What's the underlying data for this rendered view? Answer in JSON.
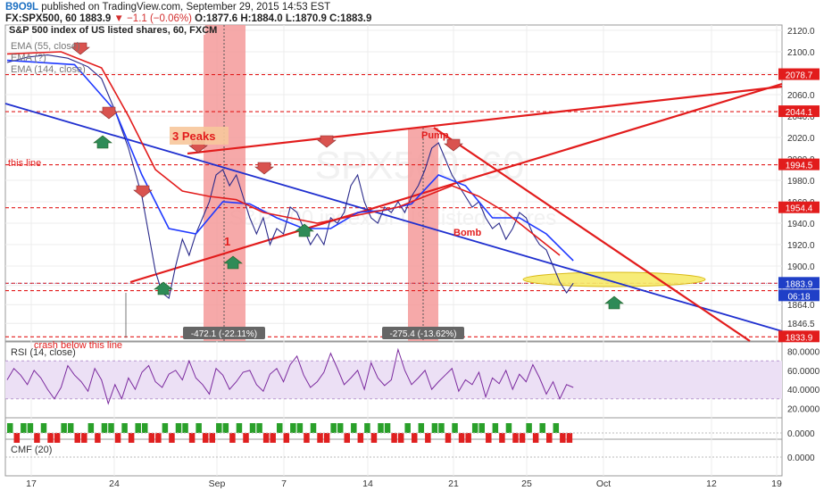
{
  "header": {
    "author": "B9O9L",
    "published": "published on TradingView.com, September 29, 2015 14:53 EST",
    "symbol": "FX:SPX500, 60",
    "last": "1883.9",
    "change": "▼ −1.1 (−0.06%)",
    "ohlc": "O:1877.6 H:1884.0 L:1870.9 C:1883.9"
  },
  "colors": {
    "price": "#2a2a8a",
    "ema55": "#1f39ff",
    "ema144": "#e21c1c",
    "trend_red": "#e21c1c",
    "trend_blue": "#1f2fcf",
    "rsi": "#7b2a9e",
    "rsi_band": "#ece0f5",
    "up_arrow": "#2e8b57",
    "down_arrow": "#d9534f",
    "bar_green": "#2aa02a",
    "bar_red": "#e02020",
    "highlight_ellipse": "#f7ea6a"
  },
  "chart_data": [
    {
      "type": "line",
      "title": "S&P 500 index of US listed shares, 60, FXCM",
      "watermark": "SPX500, 60",
      "watermark_sub": "S&P 500 index of US listed shares",
      "legend": [
        "EMA (55, close)",
        "EMA (?)",
        "EMA (144, close)"
      ],
      "ylim": [
        1830,
        2125
      ],
      "y_ticks": [
        1846.5,
        1864.0,
        1882.0,
        1900.0,
        1920.0,
        1940.0,
        1960.0,
        1980.0,
        2000.0,
        2020.0,
        2040.0,
        2060.0,
        2080.0,
        2100.0,
        2120.0
      ],
      "y_tick_labels": [
        "1846.5",
        "1864.0",
        "1882.0",
        "1900.0",
        "1920.0",
        "1940.0",
        "1960.0",
        "1980.0",
        "2000.0",
        "2020.0",
        "2040.0",
        "2060.0",
        "2080.0",
        "2100.0",
        "2120.0"
      ],
      "x_ticks": [
        "17",
        "24",
        "Sep",
        "7",
        "14",
        "21",
        "25",
        "Oct",
        "12",
        "19"
      ],
      "price_labels": [
        {
          "value": 2078.7,
          "label": "2078.7"
        },
        {
          "value": 2044.1,
          "label": "2044.1"
        },
        {
          "value": 1994.5,
          "label": "1994.5"
        },
        {
          "value": 1954.4,
          "label": "1954.4"
        },
        {
          "value": 1883.9,
          "label": "1883.9"
        },
        {
          "value": 1833.9,
          "label": "1833.9"
        }
      ],
      "countdown": "06:18",
      "series": [
        {
          "name": "SPX500",
          "points": [
            [
              0,
              2090
            ],
            [
              3,
              2095
            ],
            [
              6,
              2097
            ],
            [
              9,
              2094
            ],
            [
              12,
              2086
            ],
            [
              14,
              2075
            ],
            [
              16,
              2045
            ],
            [
              18,
              2010
            ],
            [
              20,
              1965
            ],
            [
              21,
              1930
            ],
            [
              22,
              1895
            ],
            [
              23,
              1875
            ],
            [
              24,
              1870
            ],
            [
              25,
              1900
            ],
            [
              26,
              1925
            ],
            [
              27,
              1910
            ],
            [
              28,
              1930
            ],
            [
              29,
              1945
            ],
            [
              30,
              1960
            ],
            [
              31,
              1985
            ],
            [
              32,
              1990
            ],
            [
              33,
              1975
            ],
            [
              34,
              1985
            ],
            [
              35,
              1965
            ],
            [
              36,
              1945
            ],
            [
              37,
              1930
            ],
            [
              38,
              1945
            ],
            [
              39,
              1920
            ],
            [
              40,
              1935
            ],
            [
              41,
              1930
            ],
            [
              42,
              1955
            ],
            [
              43,
              1950
            ],
            [
              44,
              1935
            ],
            [
              45,
              1920
            ],
            [
              46,
              1930
            ],
            [
              47,
              1920
            ],
            [
              48,
              1945
            ],
            [
              49,
              1940
            ],
            [
              50,
              1950
            ],
            [
              51,
              1975
            ],
            [
              52,
              1985
            ],
            [
              53,
              1960
            ],
            [
              54,
              1945
            ],
            [
              55,
              1940
            ],
            [
              56,
              1955
            ],
            [
              57,
              1950
            ],
            [
              58,
              1960
            ],
            [
              59,
              1950
            ],
            [
              60,
              1965
            ],
            [
              61,
              1975
            ],
            [
              62,
              1990
            ],
            [
              63,
              2010
            ],
            [
              64,
              2015
            ],
            [
              65,
              2000
            ],
            [
              66,
              1985
            ],
            [
              67,
              1975
            ],
            [
              68,
              1965
            ],
            [
              69,
              1955
            ],
            [
              70,
              1960
            ],
            [
              71,
              1945
            ],
            [
              72,
              1935
            ],
            [
              73,
              1940
            ],
            [
              74,
              1925
            ],
            [
              75,
              1935
            ],
            [
              76,
              1950
            ],
            [
              77,
              1945
            ],
            [
              78,
              1930
            ],
            [
              79,
              1920
            ],
            [
              80,
              1915
            ],
            [
              81,
              1900
            ],
            [
              82,
              1885
            ],
            [
              83,
              1875
            ],
            [
              84,
              1884
            ]
          ]
        },
        {
          "name": "EMA (55, close)",
          "points": [
            [
              0,
              2092
            ],
            [
              10,
              2088
            ],
            [
              16,
              2045
            ],
            [
              20,
              1985
            ],
            [
              24,
              1935
            ],
            [
              28,
              1930
            ],
            [
              32,
              1960
            ],
            [
              36,
              1958
            ],
            [
              40,
              1945
            ],
            [
              44,
              1935
            ],
            [
              48,
              1935
            ],
            [
              52,
              1950
            ],
            [
              56,
              1952
            ],
            [
              60,
              1958
            ],
            [
              64,
              1985
            ],
            [
              68,
              1975
            ],
            [
              72,
              1945
            ],
            [
              76,
              1945
            ],
            [
              80,
              1930
            ],
            [
              84,
              1905
            ]
          ]
        },
        {
          "name": "EMA (144, close)",
          "points": [
            [
              0,
              2098
            ],
            [
              8,
              2100
            ],
            [
              14,
              2085
            ],
            [
              18,
              2040
            ],
            [
              22,
              1990
            ],
            [
              26,
              1970
            ],
            [
              30,
              1965
            ],
            [
              34,
              1962
            ],
            [
              38,
              1950
            ],
            [
              42,
              1945
            ],
            [
              46,
              1940
            ],
            [
              50,
              1945
            ],
            [
              54,
              1950
            ],
            [
              58,
              1955
            ],
            [
              62,
              1965
            ],
            [
              66,
              1975
            ],
            [
              70,
              1965
            ],
            [
              74,
              1950
            ],
            [
              78,
              1930
            ],
            [
              82,
              1910
            ]
          ]
        }
      ],
      "horizontal_levels": [
        2078.7,
        2044.1,
        1994.5,
        1954.4,
        1883.9,
        1877.0,
        1833.9
      ],
      "annotations": [
        {
          "text": "3 Peaks",
          "kind": "box-label"
        },
        {
          "text": "this line",
          "kind": "label"
        },
        {
          "text": "Pump",
          "kind": "label"
        },
        {
          "text": "Bomb",
          "kind": "label"
        },
        {
          "text": "1",
          "kind": "label"
        },
        {
          "text": "crash below this line",
          "kind": "label"
        },
        {
          "text": "-472.1 (-22.11%)",
          "kind": "range-label"
        },
        {
          "text": "-275.4 (-13.62%)",
          "kind": "range-label"
        }
      ]
    },
    {
      "type": "line",
      "title": "RSI (14, close)",
      "ylim": [
        10,
        90
      ],
      "y_ticks": [
        20,
        40,
        60,
        80
      ],
      "y_tick_labels": [
        "20.0000",
        "40.0000",
        "60.0000",
        "80.0000"
      ],
      "band": [
        30,
        70
      ],
      "series": [
        {
          "name": "RSI (14, close)",
          "values": [
            50,
            62,
            55,
            45,
            60,
            52,
            40,
            30,
            42,
            65,
            55,
            48,
            38,
            62,
            50,
            25,
            45,
            30,
            52,
            40,
            58,
            65,
            48,
            42,
            56,
            60,
            50,
            70,
            52,
            45,
            35,
            62,
            55,
            40,
            48,
            58,
            60,
            45,
            38,
            56,
            62,
            48,
            66,
            75,
            55,
            42,
            48,
            58,
            78,
            62,
            45,
            52,
            60,
            40,
            68,
            52,
            44,
            50,
            82,
            60,
            45,
            52,
            60,
            40,
            48,
            55,
            62,
            38,
            50,
            45,
            58,
            32,
            52,
            46,
            60,
            40,
            56,
            48,
            66,
            52,
            35,
            48,
            30,
            45,
            42
          ]
        }
      ]
    },
    {
      "type": "bar",
      "title": "",
      "ylim": [
        -1,
        1
      ],
      "y_ticks": [
        0
      ],
      "y_tick_labels": [
        "0.0000"
      ],
      "values": [
        1,
        -1,
        1,
        1,
        -1,
        1,
        -1,
        -1,
        1,
        1,
        -1,
        -1,
        1,
        -1,
        1,
        1,
        -1,
        1,
        -1,
        1,
        1,
        -1,
        -1,
        1,
        -1,
        1,
        1,
        -1,
        1,
        -1,
        -1,
        1,
        1,
        -1,
        1,
        -1,
        1,
        1,
        -1,
        -1,
        1,
        -1,
        1,
        1,
        -1,
        1,
        -1,
        -1,
        1,
        1,
        -1,
        1,
        -1,
        1,
        -1,
        1,
        1,
        -1,
        -1,
        1,
        -1,
        1,
        -1,
        1,
        1,
        -1,
        1,
        -1,
        -1,
        1,
        1,
        -1,
        1,
        -1,
        1,
        -1,
        -1,
        1,
        -1,
        1,
        -1,
        1,
        -1,
        -1
      ]
    },
    {
      "type": "line",
      "title": "CMF (20)",
      "ylim": [
        -1,
        1
      ],
      "y_ticks": [
        0
      ],
      "y_tick_labels": [
        "0.0000"
      ],
      "series": []
    }
  ]
}
